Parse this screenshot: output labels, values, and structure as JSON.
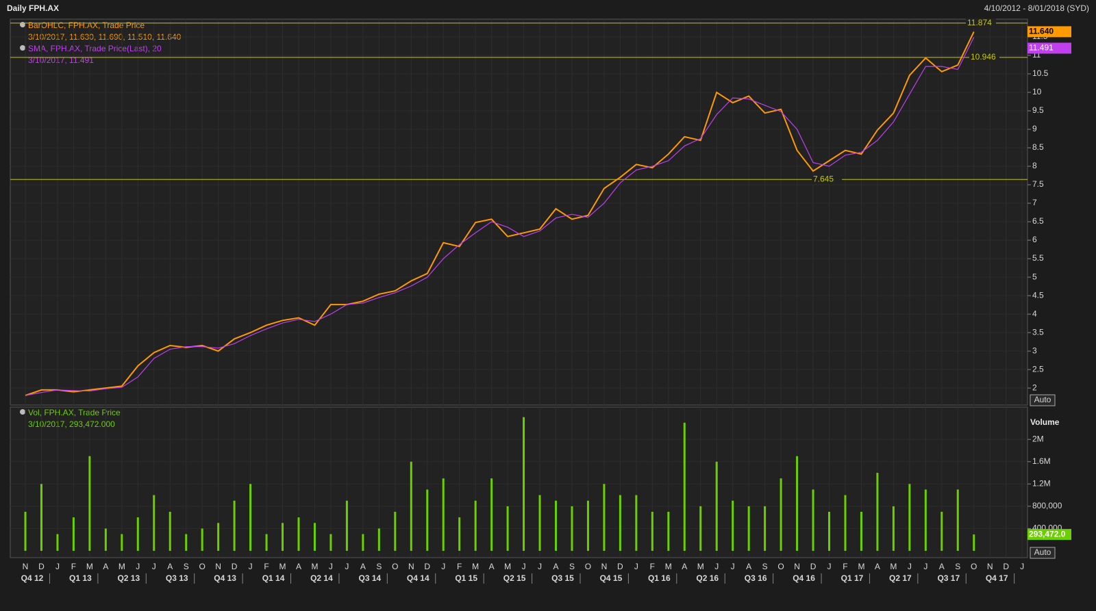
{
  "header": {
    "title": "Daily FPH.AX",
    "range": "4/10/2012 - 8/01/2018 (SYD)"
  },
  "chart_data": [
    {
      "type": "line",
      "series": [
        {
          "name": "BarOHLC, FPH.AX, Trade Price",
          "info": "3/10/2017, 11.630, 11.690, 11.510, 11.640",
          "color": "#ff9a00",
          "value_label": "11.640",
          "values": [
            1.8,
            1.95,
            1.95,
            1.9,
            1.95,
            2.0,
            2.05,
            2.6,
            2.96,
            3.15,
            3.1,
            3.15,
            3.0,
            3.33,
            3.5,
            3.7,
            3.83,
            3.9,
            3.7,
            4.26,
            4.26,
            4.35,
            4.54,
            4.63,
            4.9,
            5.1,
            5.93,
            5.83,
            6.48,
            6.57,
            6.1,
            6.2,
            6.3,
            6.85,
            6.57,
            6.67,
            7.4,
            7.7,
            8.05,
            7.96,
            8.33,
            8.8,
            8.7,
            10.0,
            9.72,
            9.9,
            9.44,
            9.54,
            8.43,
            7.87,
            8.15,
            8.43,
            8.33,
            8.98,
            9.44,
            10.46,
            10.93,
            10.56,
            10.74,
            11.64,
            null,
            null,
            null
          ]
        },
        {
          "name": "SMA, FPH.AX, Trade Price(Last),  20",
          "info": "3/10/2017, 11.491",
          "color": "#c040f0",
          "value_label": "11.491",
          "values": [
            1.8,
            1.88,
            1.95,
            1.93,
            1.92,
            1.98,
            2.02,
            2.3,
            2.8,
            3.05,
            3.12,
            3.12,
            3.08,
            3.2,
            3.42,
            3.6,
            3.76,
            3.86,
            3.8,
            4.0,
            4.26,
            4.3,
            4.45,
            4.58,
            4.76,
            5.0,
            5.5,
            5.88,
            6.2,
            6.5,
            6.35,
            6.1,
            6.25,
            6.6,
            6.7,
            6.62,
            7.0,
            7.55,
            7.9,
            8.0,
            8.15,
            8.55,
            8.75,
            9.4,
            9.85,
            9.82,
            9.65,
            9.48,
            9.0,
            8.1,
            8.0,
            8.3,
            8.38,
            8.7,
            9.2,
            9.95,
            10.7,
            10.7,
            10.62,
            11.491,
            null,
            null,
            null
          ]
        }
      ],
      "ylim": [
        1.54,
        11.98
      ],
      "yticks": [
        2,
        2.5,
        3,
        3.5,
        4,
        4.5,
        5,
        5.5,
        6,
        6.5,
        7,
        7.5,
        8,
        8.5,
        9,
        9.5,
        10,
        10.5,
        11,
        11.5
      ],
      "hlines": [
        11.874,
        10.946,
        7.645
      ],
      "hline_color": "#c8c800",
      "grid": true,
      "scale_button": "Auto"
    },
    {
      "type": "bar",
      "ylabel": "Volume",
      "series": [
        {
          "name": "Vol, FPH.AX, Trade Price",
          "info": "3/10/2017, 293,472.000",
          "color": "#6cd000",
          "value_label": "293,472.0",
          "values": [
            700000,
            1200000,
            300000,
            600000,
            1700000,
            400000,
            300000,
            600000,
            1000000,
            700000,
            300000,
            400000,
            500000,
            900000,
            1200000,
            300000,
            500000,
            600000,
            500000,
            300000,
            900000,
            300000,
            400000,
            700000,
            1600000,
            1100000,
            1300000,
            600000,
            900000,
            1300000,
            800000,
            2400000,
            1000000,
            900000,
            800000,
            900000,
            1200000,
            1000000,
            1000000,
            700000,
            700000,
            2300000,
            800000,
            1600000,
            900000,
            800000,
            800000,
            1300000,
            1700000,
            1100000,
            700000,
            1000000,
            700000,
            1400000,
            800000,
            1200000,
            1100000,
            700000,
            1100000,
            293472,
            null,
            null,
            null
          ]
        }
      ],
      "ylim": [
        0,
        2580000
      ],
      "yticks": [
        {
          "value": 400000,
          "label": "400,000"
        },
        {
          "value": 800000,
          "label": "800,000"
        },
        {
          "value": 1200000,
          "label": "1.2M"
        },
        {
          "value": 1600000,
          "label": "1.6M"
        },
        {
          "value": 2000000,
          "label": "2M"
        }
      ],
      "grid": true,
      "scale_button": "Auto",
      "categories": [
        "N",
        "D",
        "J",
        "F",
        "M",
        "A",
        "M",
        "J",
        "J",
        "A",
        "S",
        "O",
        "N",
        "D",
        "J",
        "F",
        "M",
        "A",
        "M",
        "J",
        "J",
        "A",
        "S",
        "O",
        "N",
        "D",
        "J",
        "F",
        "M",
        "A",
        "M",
        "J",
        "J",
        "A",
        "S",
        "O",
        "N",
        "D",
        "J",
        "F",
        "M",
        "A",
        "M",
        "J",
        "J",
        "A",
        "S",
        "O",
        "N",
        "D",
        "J",
        "F",
        "M",
        "A",
        "M",
        "J",
        "J",
        "A",
        "S",
        "O",
        "N",
        "D",
        "J"
      ],
      "quarters": [
        "Q4 12",
        "Q1 13",
        "Q2 13",
        "Q3 13",
        "Q4 13",
        "Q1 14",
        "Q2 14",
        "Q3 14",
        "Q4 14",
        "Q1 15",
        "Q2 15",
        "Q3 15",
        "Q4 15",
        "Q1 16",
        "Q2 16",
        "Q3 16",
        "Q4 16",
        "Q1 17",
        "Q2 17",
        "Q3 17",
        "Q4 17"
      ]
    }
  ]
}
